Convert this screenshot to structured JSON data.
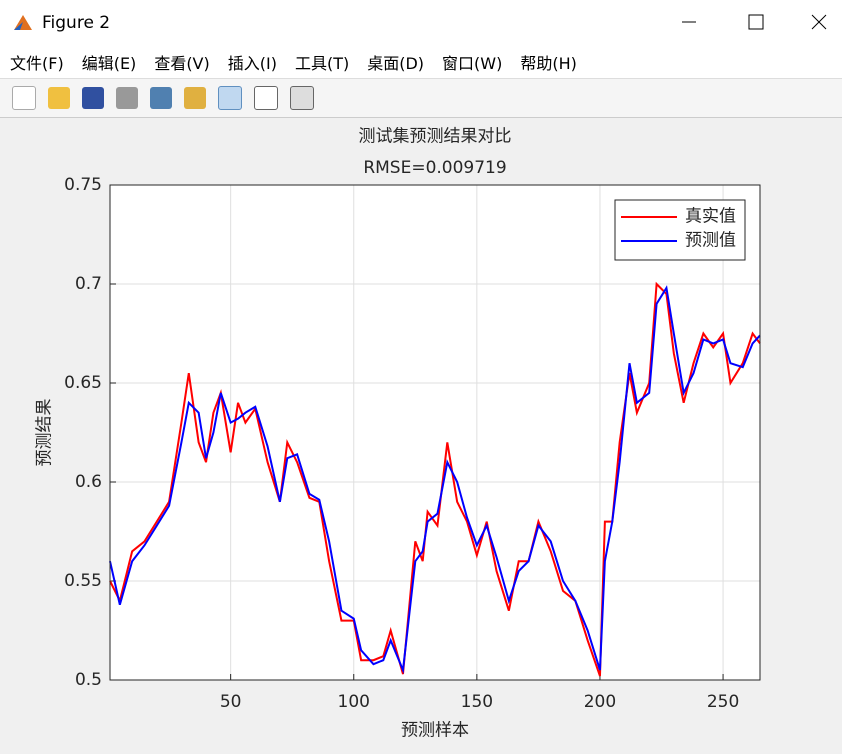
{
  "window": {
    "title": "Figure 2",
    "menu": [
      "文件(F)",
      "编辑(E)",
      "查看(V)",
      "插入(I)",
      "工具(T)",
      "桌面(D)",
      "窗口(W)",
      "帮助(H)"
    ]
  },
  "chart_data": {
    "type": "line",
    "title": "测试集预测结果对比",
    "subtitle": "RMSE=0.009719",
    "x_label": "预测样本",
    "y_label": "预测结果",
    "x": [
      1,
      5,
      10,
      15,
      20,
      25,
      30,
      33,
      37,
      40,
      43,
      46,
      50,
      53,
      56,
      60,
      65,
      70,
      73,
      77,
      82,
      86,
      90,
      95,
      100,
      103,
      108,
      112,
      115,
      120,
      125,
      128,
      130,
      134,
      138,
      142,
      146,
      150,
      154,
      158,
      163,
      167,
      171,
      175,
      180,
      185,
      190,
      195,
      200,
      202,
      205,
      208,
      212,
      215,
      220,
      223,
      227,
      230,
      234,
      238,
      242,
      246,
      250,
      253,
      258,
      262,
      265
    ],
    "series": [
      {
        "name": "真实值",
        "color": "#ff0000",
        "values": [
          0.55,
          0.54,
          0.565,
          0.57,
          0.58,
          0.59,
          0.63,
          0.655,
          0.62,
          0.61,
          0.635,
          0.645,
          0.615,
          0.64,
          0.63,
          0.637,
          0.61,
          0.59,
          0.62,
          0.61,
          0.592,
          0.59,
          0.56,
          0.53,
          0.53,
          0.51,
          0.51,
          0.512,
          0.525,
          0.503,
          0.57,
          0.56,
          0.585,
          0.578,
          0.62,
          0.59,
          0.58,
          0.563,
          0.58,
          0.555,
          0.535,
          0.56,
          0.56,
          0.58,
          0.565,
          0.545,
          0.54,
          0.52,
          0.502,
          0.58,
          0.58,
          0.62,
          0.655,
          0.635,
          0.65,
          0.7,
          0.695,
          0.665,
          0.64,
          0.66,
          0.675,
          0.668,
          0.675,
          0.65,
          0.66,
          0.675,
          0.67
        ]
      },
      {
        "name": "预测值",
        "color": "#0000ff",
        "values": [
          0.56,
          0.538,
          0.56,
          0.568,
          0.578,
          0.588,
          0.62,
          0.64,
          0.635,
          0.612,
          0.625,
          0.645,
          0.63,
          0.632,
          0.635,
          0.638,
          0.618,
          0.59,
          0.612,
          0.614,
          0.594,
          0.591,
          0.57,
          0.535,
          0.531,
          0.515,
          0.508,
          0.51,
          0.52,
          0.505,
          0.56,
          0.565,
          0.58,
          0.584,
          0.61,
          0.6,
          0.582,
          0.568,
          0.578,
          0.562,
          0.54,
          0.555,
          0.56,
          0.578,
          0.57,
          0.55,
          0.54,
          0.525,
          0.505,
          0.56,
          0.58,
          0.61,
          0.66,
          0.64,
          0.645,
          0.69,
          0.698,
          0.675,
          0.645,
          0.655,
          0.672,
          0.67,
          0.672,
          0.66,
          0.658,
          0.67,
          0.674
        ]
      }
    ],
    "xlim": [
      1,
      265
    ],
    "ylim": [
      0.5,
      0.75
    ],
    "xticks": [
      50,
      100,
      150,
      200,
      250
    ],
    "yticks": [
      0.5,
      0.55,
      0.6,
      0.65,
      0.7,
      0.75
    ],
    "grid": true,
    "legend": "northeast"
  }
}
